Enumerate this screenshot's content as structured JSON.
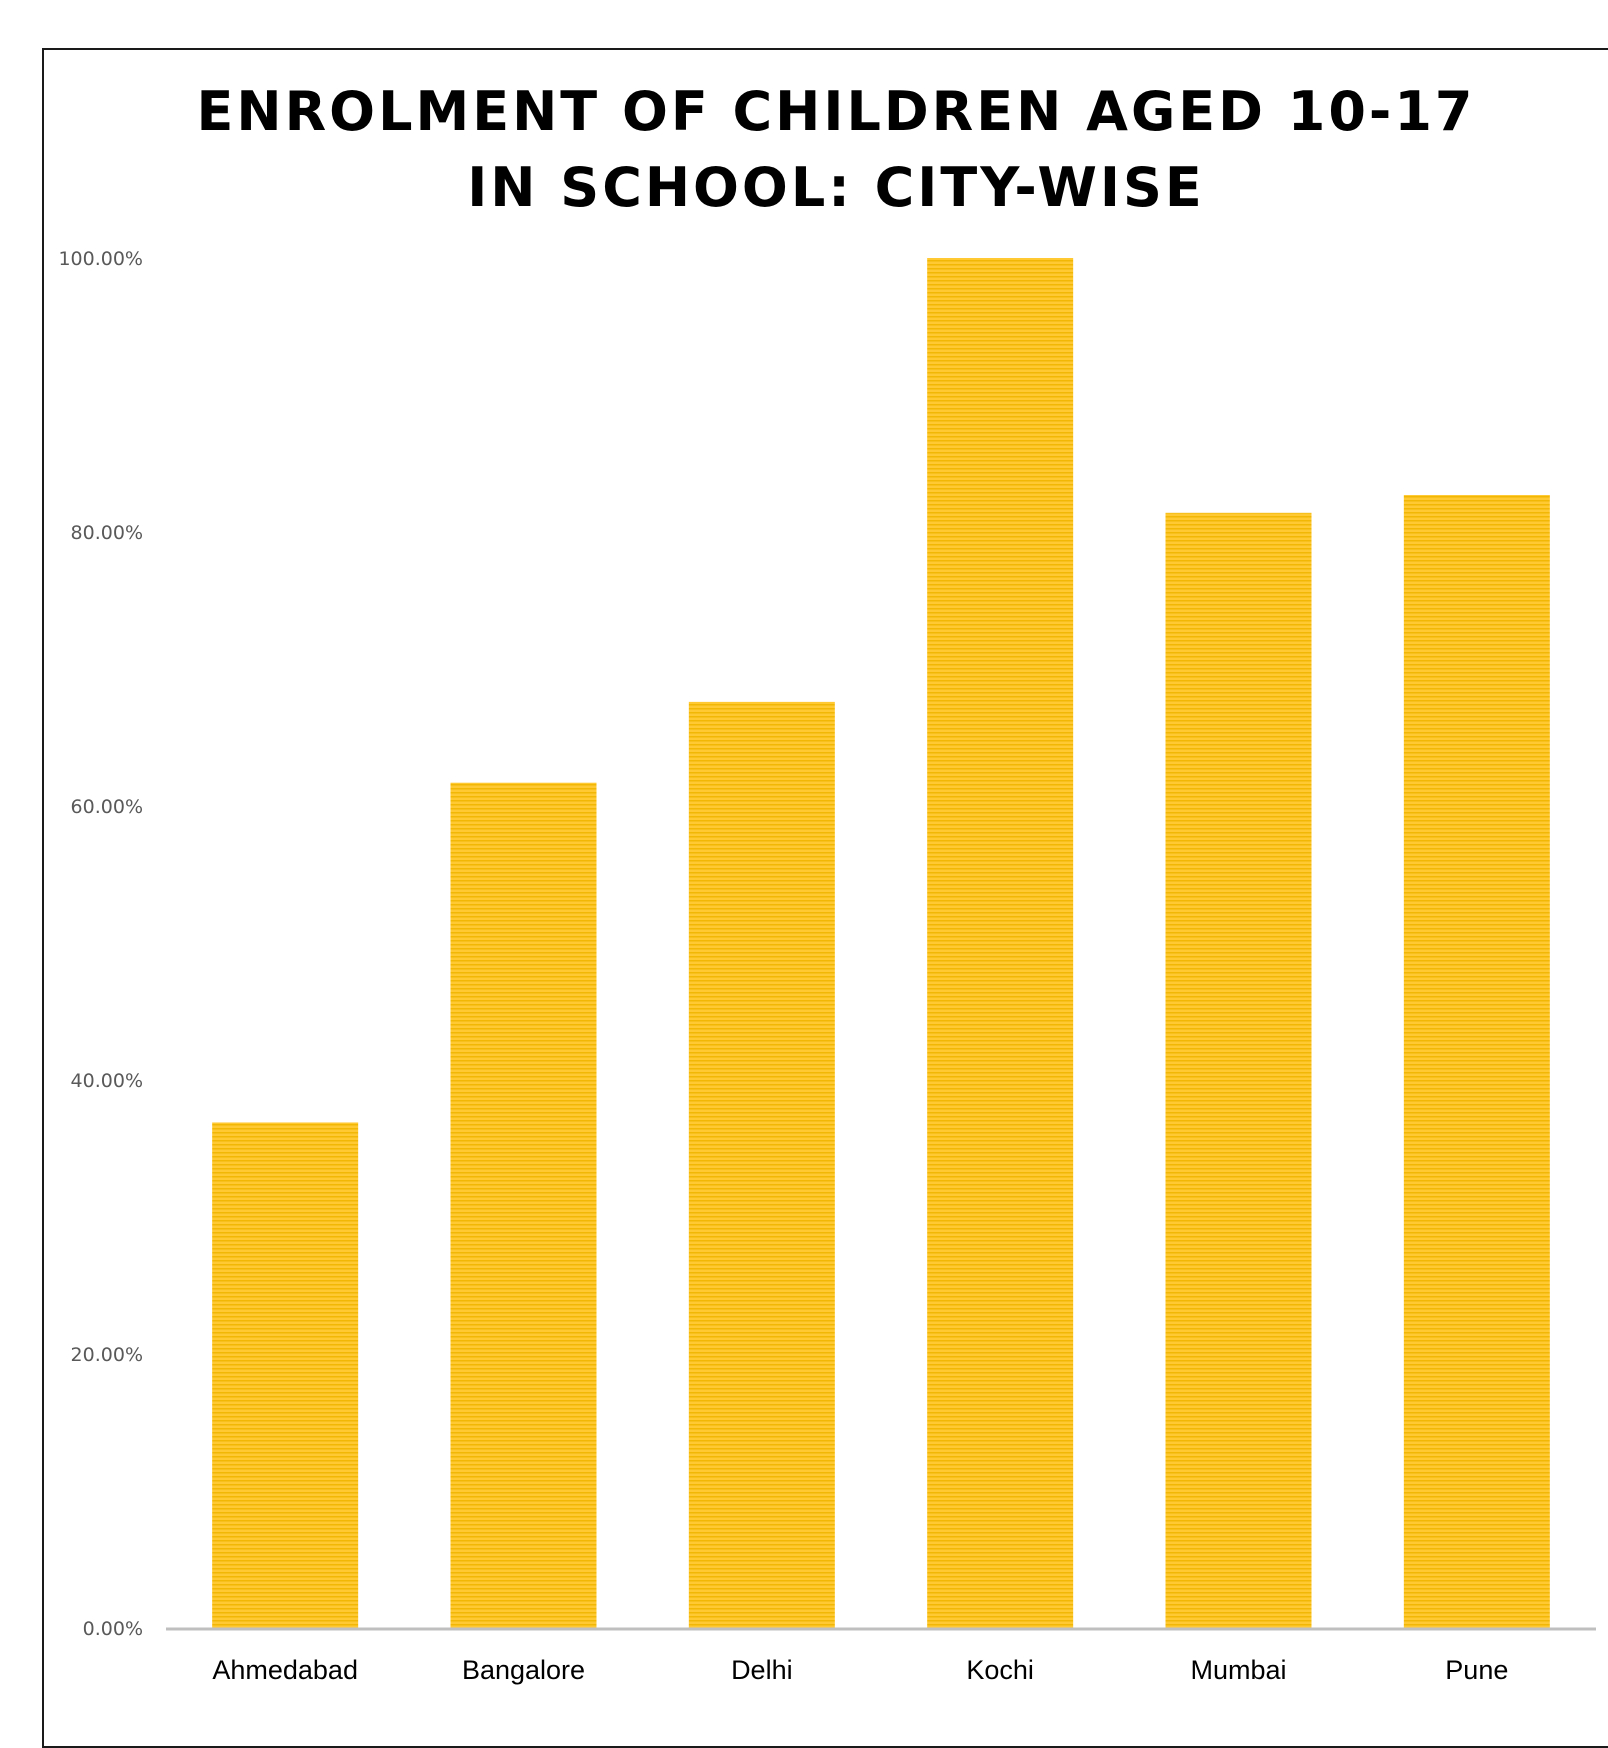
{
  "chart_data": {
    "type": "bar",
    "title": [
      "ENROLMENT OF CHILDREN AGED 10-17",
      "IN SCHOOL: CITY-WISE"
    ],
    "categories": [
      "Ahmedabad",
      "Bangalore",
      "Delhi",
      "Kochi",
      "Mumbai",
      "Pune"
    ],
    "values": [
      36.9,
      61.7,
      67.6,
      100.0,
      81.4,
      82.7
    ],
    "yticks": [
      "0.00%",
      "20.00%",
      "40.00%",
      "60.00%",
      "80.00%",
      "100.00%"
    ],
    "ylim": [
      0,
      100
    ],
    "grid": false,
    "legend": "none",
    "xlabel": "",
    "ylabel": "",
    "colors": {
      "bar": "#FFC934",
      "bar_stripe": "#F2B705",
      "axis": "#BFBFBF"
    }
  }
}
